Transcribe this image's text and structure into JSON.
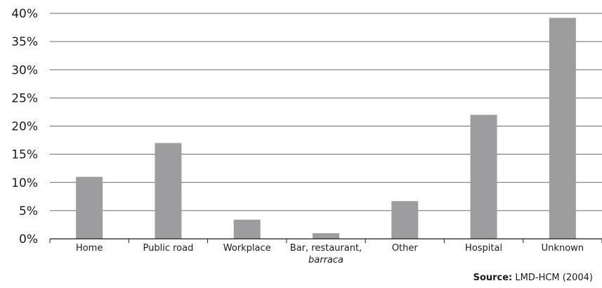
{
  "chart_data": {
    "type": "bar",
    "categories": [
      [
        "Home"
      ],
      [
        "Public road"
      ],
      [
        "Workplace"
      ],
      [
        "Bar, restaurant,",
        "barraca"
      ],
      [
        "Other"
      ],
      [
        "Hospital"
      ],
      [
        "Unknown"
      ]
    ],
    "values": [
      11,
      17,
      3.4,
      1,
      6.7,
      22,
      39.2
    ],
    "unit": "%",
    "ylim": [
      0,
      40
    ],
    "yticks": [
      "0%",
      "5%",
      "10%",
      "15%",
      "20%",
      "25%",
      "30%",
      "35%",
      "40%"
    ],
    "grid": true,
    "bar_color": "#9d9da0",
    "grid_color": "#3a3a3a"
  },
  "source": {
    "label": "Source:",
    "text": "LMD-HCM (2004)"
  }
}
